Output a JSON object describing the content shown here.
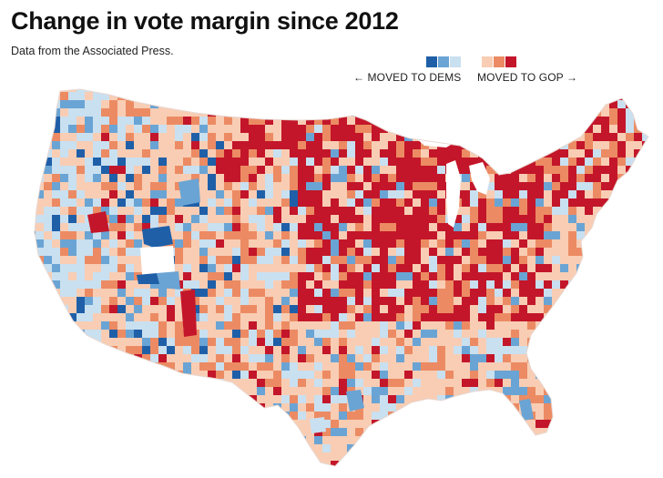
{
  "title": "Change in vote margin since 2012",
  "subtitle": "Data from the Associated Press.",
  "legend": {
    "dems_label": "← MOVED TO DEMS",
    "gop_label": "MOVED TO GOP →",
    "dems_colors": [
      "#1f5fa8",
      "#6aa4d4",
      "#c9e0f0"
    ],
    "gop_colors": [
      "#f8cdb4",
      "#ec8b63",
      "#c3162a"
    ]
  },
  "map_colors": {
    "strong_dem": "#1f5fa8",
    "medium_dem": "#6aa4d4",
    "light_dem": "#c9e0f0",
    "light_gop": "#f8cdb4",
    "medium_gop": "#ec8b63",
    "strong_gop": "#c3162a",
    "no_data": "#ffffff"
  }
}
